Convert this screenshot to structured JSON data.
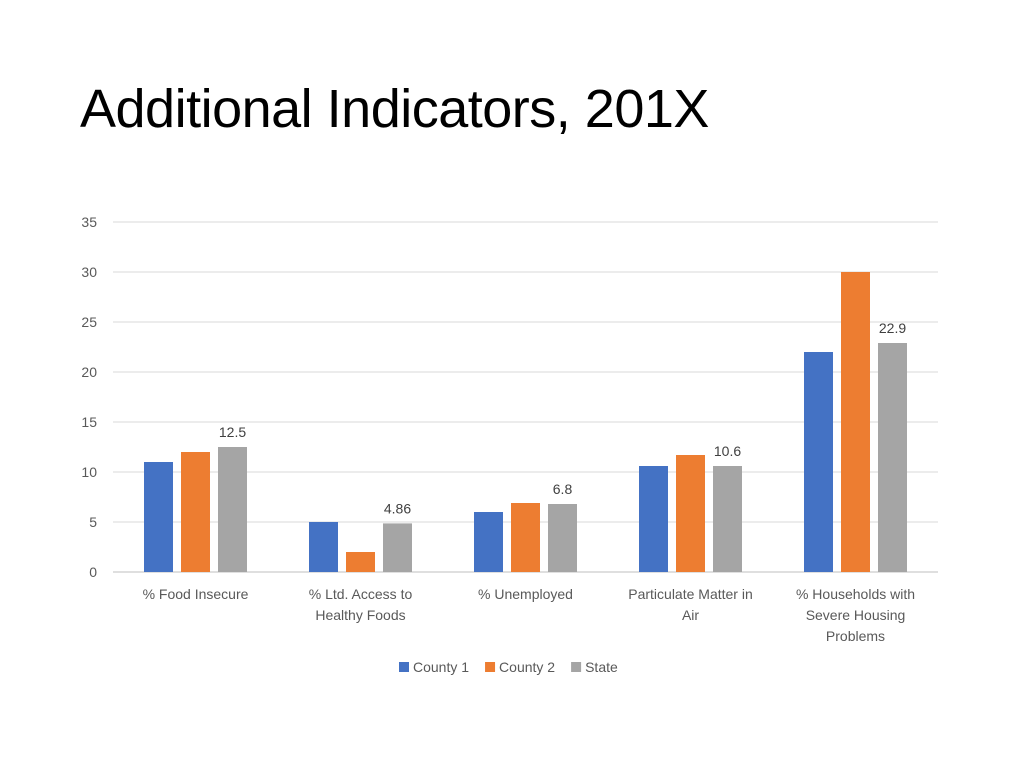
{
  "slide": {
    "title": "Additional Indicators, 201X"
  },
  "chart_data": {
    "type": "bar",
    "categories": [
      [
        "% Food Insecure"
      ],
      [
        "% Ltd. Access to",
        "Healthy Foods"
      ],
      [
        "% Unemployed"
      ],
      [
        "Particulate Matter in",
        "Air"
      ],
      [
        "% Households with",
        "Severe Housing",
        "Problems"
      ]
    ],
    "series": [
      {
        "name": "County 1",
        "color": "#4472C4",
        "values": [
          11,
          5,
          6,
          10.6,
          22
        ]
      },
      {
        "name": "County 2",
        "color": "#ED7D31",
        "values": [
          12,
          2,
          6.9,
          11.7,
          30
        ]
      },
      {
        "name": "State",
        "color": "#A5A5A5",
        "values": [
          12.5,
          4.86,
          6.8,
          10.6,
          22.9
        ]
      }
    ],
    "data_labels": {
      "series": "State",
      "labels": [
        "12.5",
        "4.86",
        "6.8",
        "10.6",
        "22.9"
      ]
    },
    "ylim": [
      0,
      35
    ],
    "yticks": [
      0,
      5,
      10,
      15,
      20,
      25,
      30,
      35
    ],
    "grid": true,
    "legend": "bottom"
  }
}
